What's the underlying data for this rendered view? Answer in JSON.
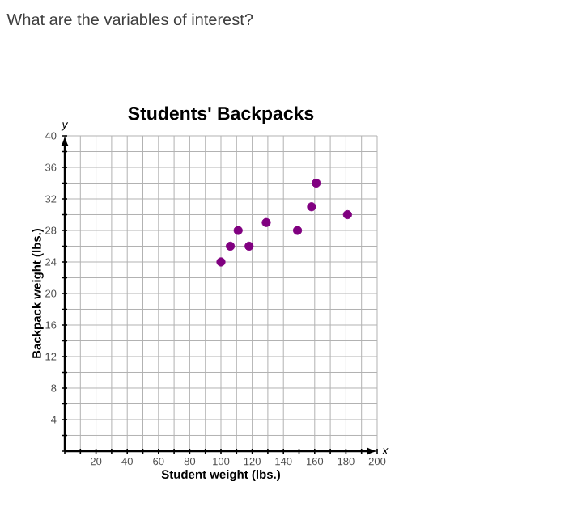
{
  "chart_data": {
    "type": "scatter",
    "title": "Students' Backpacks",
    "xlabel": "Student weight (lbs.)",
    "ylabel": "Backpack weight (lbs.)",
    "annotations": [
      "What are the variables of interest?",
      "y",
      "x"
    ],
    "x": [
      100,
      106,
      111,
      118,
      129,
      149,
      158,
      161,
      181
    ],
    "values": [
      24,
      26,
      28,
      26,
      29,
      28,
      31,
      34,
      30
    ],
    "color": "#800080",
    "marker": "circle",
    "grid": true,
    "xlim": [
      0,
      200
    ],
    "ylim": [
      0,
      40
    ],
    "xticks": [
      {
        "value": 0,
        "label": null
      },
      {
        "value": 10,
        "label": null
      },
      20,
      {
        "value": 30,
        "label": null
      },
      40,
      {
        "value": 50,
        "label": null
      },
      60,
      {
        "value": 70,
        "label": null
      },
      80,
      {
        "value": 90,
        "label": null
      },
      100,
      {
        "value": 110,
        "label": null
      },
      120,
      {
        "value": 130,
        "label": null
      },
      140,
      {
        "value": 150,
        "label": null
      },
      160,
      {
        "value": 170,
        "label": null
      },
      180,
      {
        "value": 190,
        "label": null
      },
      200
    ],
    "yticks": [
      {
        "value": 0,
        "label": null
      },
      {
        "value": 2,
        "label": null
      },
      4,
      {
        "value": 6,
        "label": null
      },
      8,
      {
        "value": 10,
        "label": null
      },
      12,
      {
        "value": 14,
        "label": null
      },
      16,
      {
        "value": 18,
        "label": null
      },
      20,
      {
        "value": 22,
        "label": null
      },
      24,
      {
        "value": 26,
        "label": null
      },
      28,
      {
        "value": 30,
        "label": null
      },
      32,
      {
        "value": 34,
        "label": null
      },
      36,
      {
        "value": 38,
        "label": null
      },
      40
    ]
  }
}
